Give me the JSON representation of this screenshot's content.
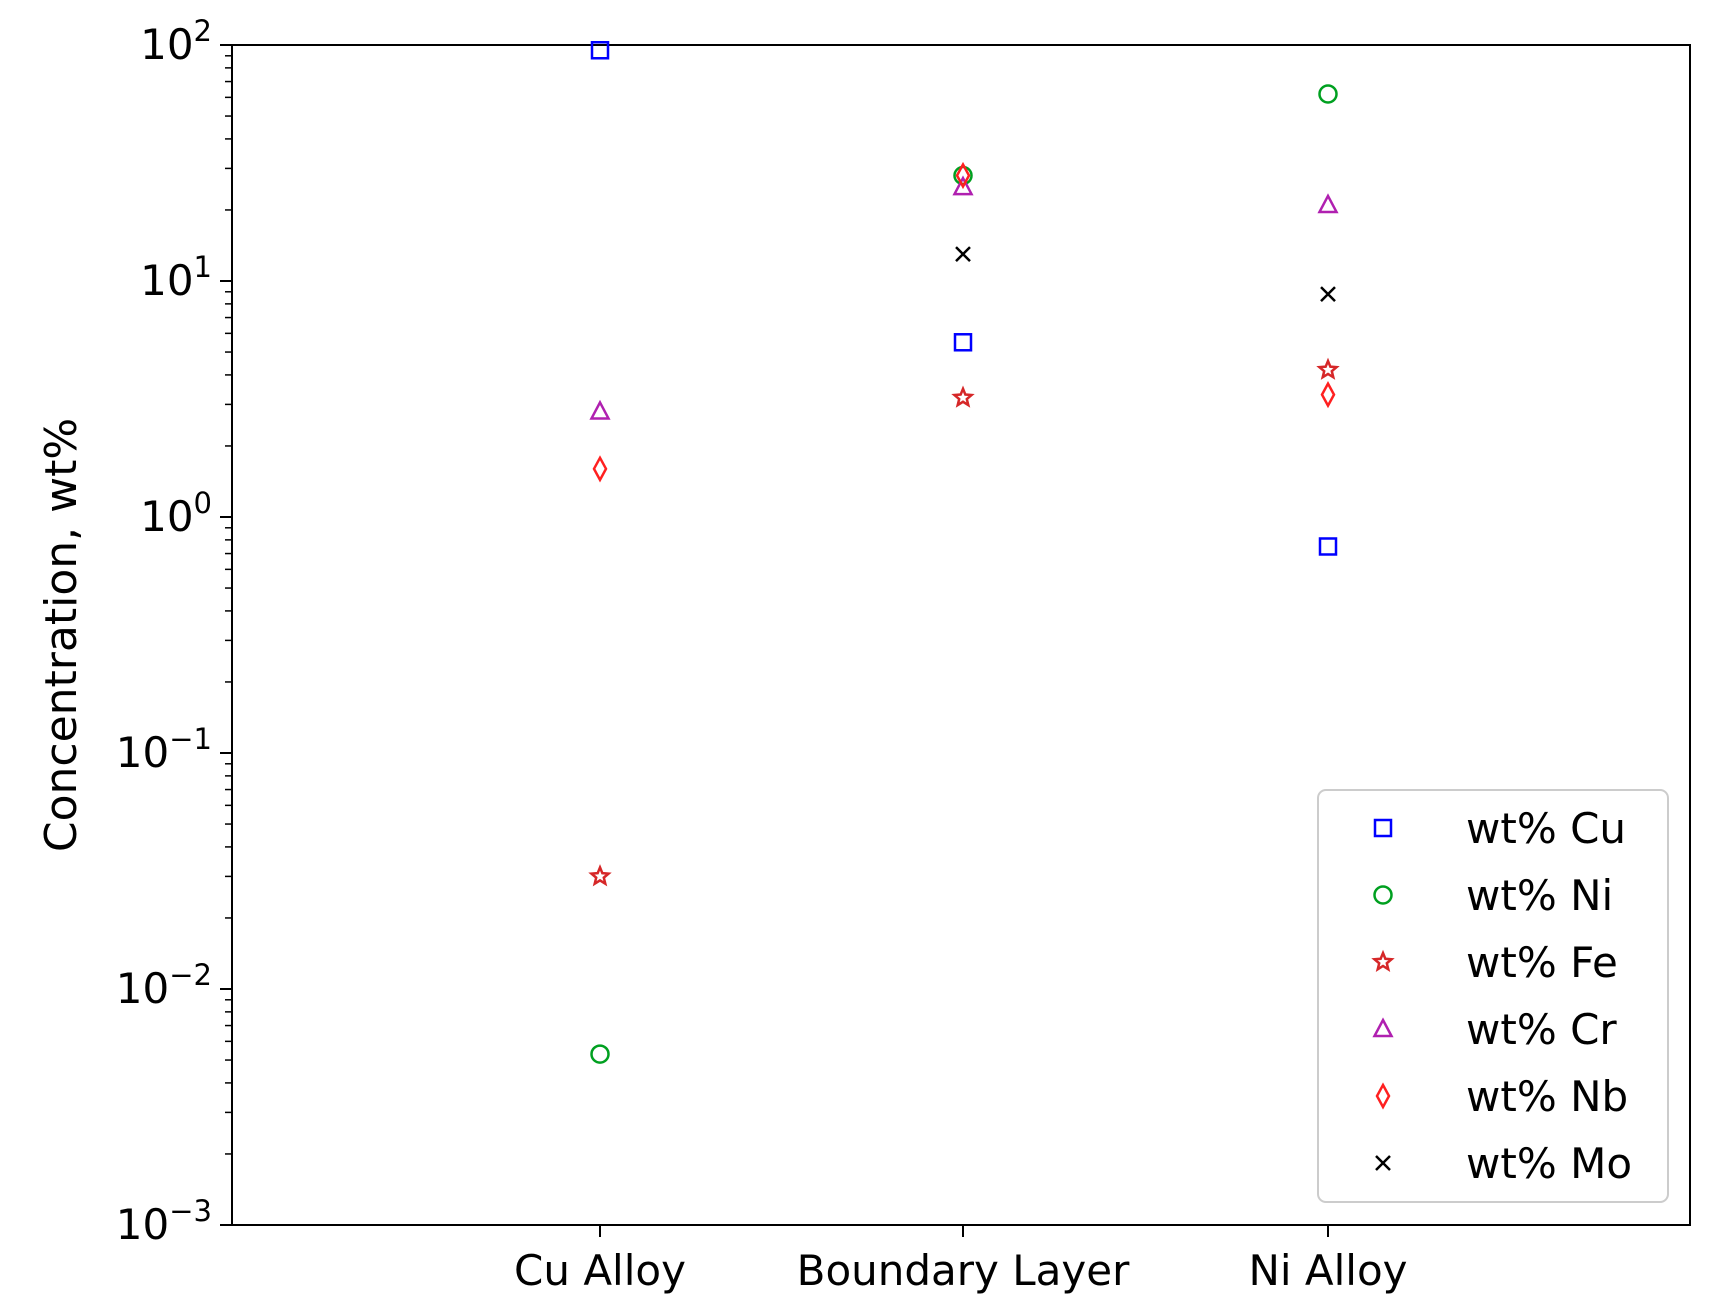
{
  "chart_data": {
    "type": "scatter",
    "title": "",
    "xlabel": "",
    "ylabel": "Concentration, wt%",
    "yscale": "log",
    "ylim": [
      0.001,
      100
    ],
    "yticks": [
      {
        "value": 0.001,
        "base": "10",
        "exp": "−3"
      },
      {
        "value": 0.01,
        "base": "10",
        "exp": "−2"
      },
      {
        "value": 0.1,
        "base": "10",
        "exp": "−1"
      },
      {
        "value": 1,
        "base": "10",
        "exp": "0"
      },
      {
        "value": 10,
        "base": "10",
        "exp": "1"
      },
      {
        "value": 100,
        "base": "10",
        "exp": "2"
      }
    ],
    "categories": [
      "Cu Alloy",
      "Boundary Layer",
      "Ni Alloy"
    ],
    "grid": false,
    "legend_position": "lower-right",
    "series": [
      {
        "name": "wt% Cu",
        "marker": "square",
        "color": "#0000ff",
        "values": [
          95,
          5.5,
          0.75
        ]
      },
      {
        "name": "wt% Ni",
        "marker": "circle",
        "color": "#00a020",
        "values": [
          0.0053,
          28,
          62
        ]
      },
      {
        "name": "wt% Fe",
        "marker": "star",
        "color": "#d62728",
        "values": [
          0.03,
          3.2,
          4.2
        ]
      },
      {
        "name": "wt% Cr",
        "marker": "triangle",
        "color": "#b020b0",
        "values": [
          2.8,
          25,
          21
        ]
      },
      {
        "name": "wt% Nb",
        "marker": "diamond",
        "color": "#ff2020",
        "values": [
          1.6,
          28,
          3.3
        ]
      },
      {
        "name": "wt% Mo",
        "marker": "x",
        "color": "#000000",
        "values": [
          null,
          13,
          8.8
        ]
      }
    ]
  }
}
